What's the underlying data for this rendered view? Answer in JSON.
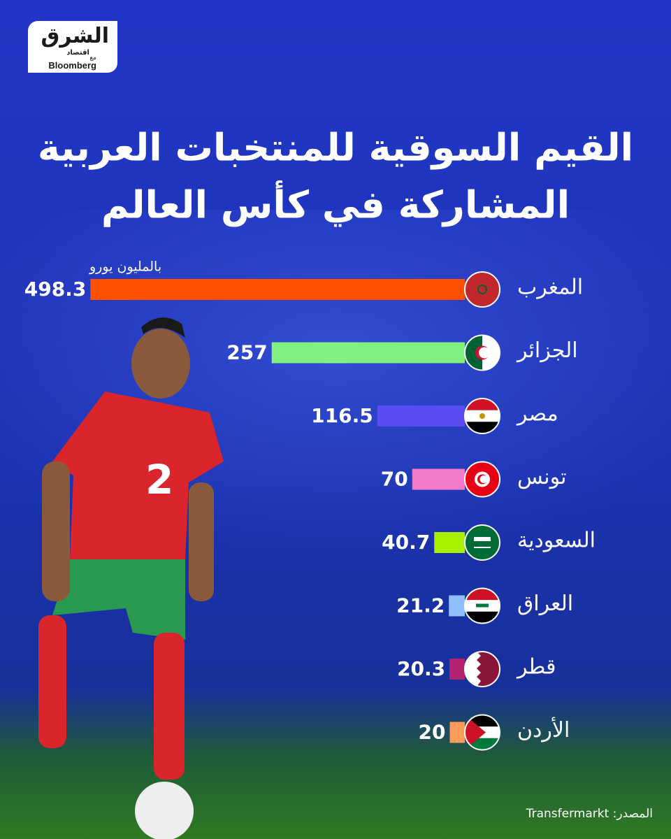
{
  "header": {
    "logo": "الشرق",
    "logo_sub": "اقتصاد",
    "partner_prefix": "مع",
    "partner": "Bloomberg"
  },
  "chart_data": {
    "type": "bar",
    "orientation": "horizontal",
    "title": [
      "القيم السوقية للمنتخبات العربية",
      "المشاركة في كأس العالم"
    ],
    "unit": "بالمليون يورو",
    "categories": [
      "المغرب",
      "الجزائر",
      "مصر",
      "تونس",
      "السعودية",
      "العراق",
      "قطر",
      "الأردن"
    ],
    "values": [
      498.3,
      257,
      116.5,
      70,
      40.7,
      21.2,
      20.3,
      20
    ],
    "colors": [
      "#ff5000",
      "#80f080",
      "#5a4cf2",
      "#f27acb",
      "#a9f000",
      "#8fbfff",
      "#b3236f",
      "#ff9c5c"
    ],
    "xlim": [
      0,
      500
    ],
    "source": "المصدر: Transfermarkt"
  }
}
